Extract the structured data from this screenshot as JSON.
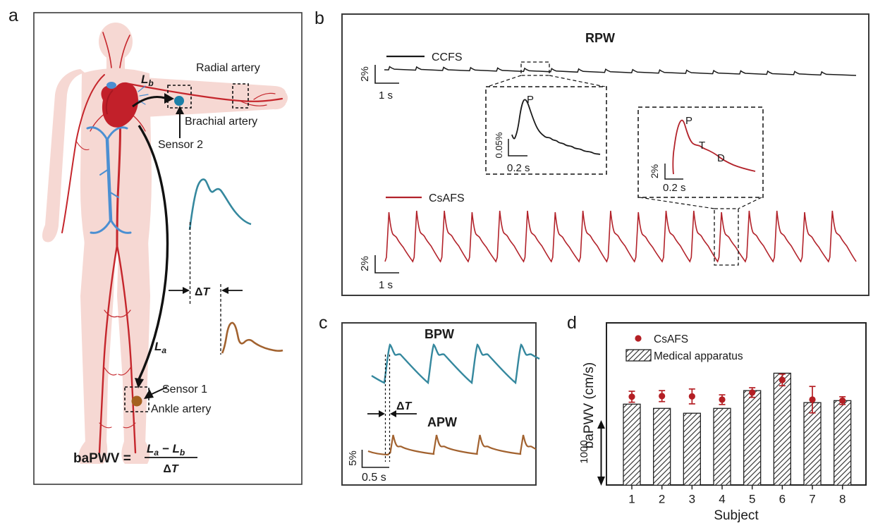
{
  "panels": {
    "a_label": "a",
    "b_label": "b",
    "c_label": "c",
    "d_label": "d"
  },
  "colors": {
    "csafs_red": "#b2222a",
    "dot_red": "#b41f24",
    "teal_trace": "#35889e",
    "brown_trace": "#a2622f",
    "sensor2_dot": "#1c80a8",
    "sensor2_text": "#2e93b5",
    "sensor1_dot": "#a4611f",
    "sensor1_text": "#a4632d",
    "artery_red": "#c5262c",
    "vein_blue": "#4b8fd2",
    "heart_red": "#c2202a",
    "body_pink": "#f6d8d3"
  },
  "panel_a": {
    "radial_artery": "Radial artery",
    "brachial_artery": "Brachial artery",
    "sensor2": "Sensor 2",
    "sensor1": "Sensor 1",
    "ankle_artery": "Ankle artery",
    "lb": {
      "base": "L",
      "sub": "b"
    },
    "la": {
      "base": "L",
      "sub": "a"
    },
    "dt": {
      "delta": "Δ",
      "t": "T"
    },
    "formula": {
      "lhs": "baPWV =",
      "num_base1": "L",
      "num_sub1": "a",
      "num_minus": " − ",
      "num_base2": "L",
      "num_sub2": "b",
      "den": {
        "delta": "Δ",
        "t": "T"
      }
    }
  },
  "panel_b": {
    "title": "RPW",
    "ccfs_label": "CCFS",
    "csafs_label": "CsAFS",
    "top_scale": {
      "v": "2%",
      "h": "1 s"
    },
    "bottom_scale": {
      "v": "2%",
      "h": "1 s"
    },
    "inset_ccfs": {
      "p": "P",
      "scale_v": "0.05%",
      "scale_h": "0.2 s"
    },
    "inset_csafs": {
      "p": "P",
      "t": "T",
      "d": "D",
      "scale_v": "2%",
      "scale_h": "0.2 s"
    }
  },
  "panel_c": {
    "bpw_label": "BPW",
    "apw_label": "APW",
    "dt": {
      "delta": "Δ",
      "t": "T"
    },
    "scale": {
      "v": "5%",
      "h": "0.5 s"
    }
  },
  "panel_d": {
    "legend_csafs": "CsAFS",
    "legend_medical": "Medical apparatus",
    "ylabel": "baPWV (cm/s)",
    "xlabel": "Subject",
    "scale_label": "1000"
  },
  "chart_data": [
    {
      "panel": "d",
      "type": "bar",
      "categories": [
        "1",
        "2",
        "3",
        "4",
        "5",
        "6",
        "7",
        "8"
      ],
      "series": [
        {
          "name": "Medical apparatus",
          "type": "bar",
          "values": [
            1255,
            1190,
            1115,
            1190,
            1465,
            1735,
            1280,
            1310
          ]
        },
        {
          "name": "CsAFS",
          "type": "scatter",
          "values": [
            1370,
            1380,
            1375,
            1325,
            1435,
            1630,
            1325,
            1310
          ],
          "errors": [
            85,
            85,
            115,
            75,
            75,
            90,
            205,
            60
          ]
        }
      ],
      "xlabel": "Subject",
      "ylabel": "baPWV (cm/s)",
      "y_scale_bar": {
        "label": "1000",
        "span_cm_s": 1000
      },
      "ylim": [
        0,
        2500
      ],
      "grid": false,
      "legend_position": "top-left"
    },
    {
      "panel": "b",
      "type": "line",
      "title": "RPW",
      "series": [
        {
          "name": "CCFS",
          "beats": 17,
          "description": "low-amplitude radial pulse trace, scale 2% / 1 s, zoom inset scale 0.05% / 0.2 s, peak P"
        },
        {
          "name": "CsAFS",
          "beats": 17,
          "description": "high-amplitude radial pulse trace, scale 2% / 1 s, zoom inset scale 2% / 0.2 s, features P, T, D"
        }
      ]
    },
    {
      "panel": "c",
      "type": "line",
      "series": [
        {
          "name": "BPW",
          "beats": 4,
          "description": "brachial pulse wave, scale 5% / 0.5 s"
        },
        {
          "name": "APW",
          "beats": 4,
          "description": "ankle pulse wave delayed by ΔT"
        }
      ]
    }
  ]
}
